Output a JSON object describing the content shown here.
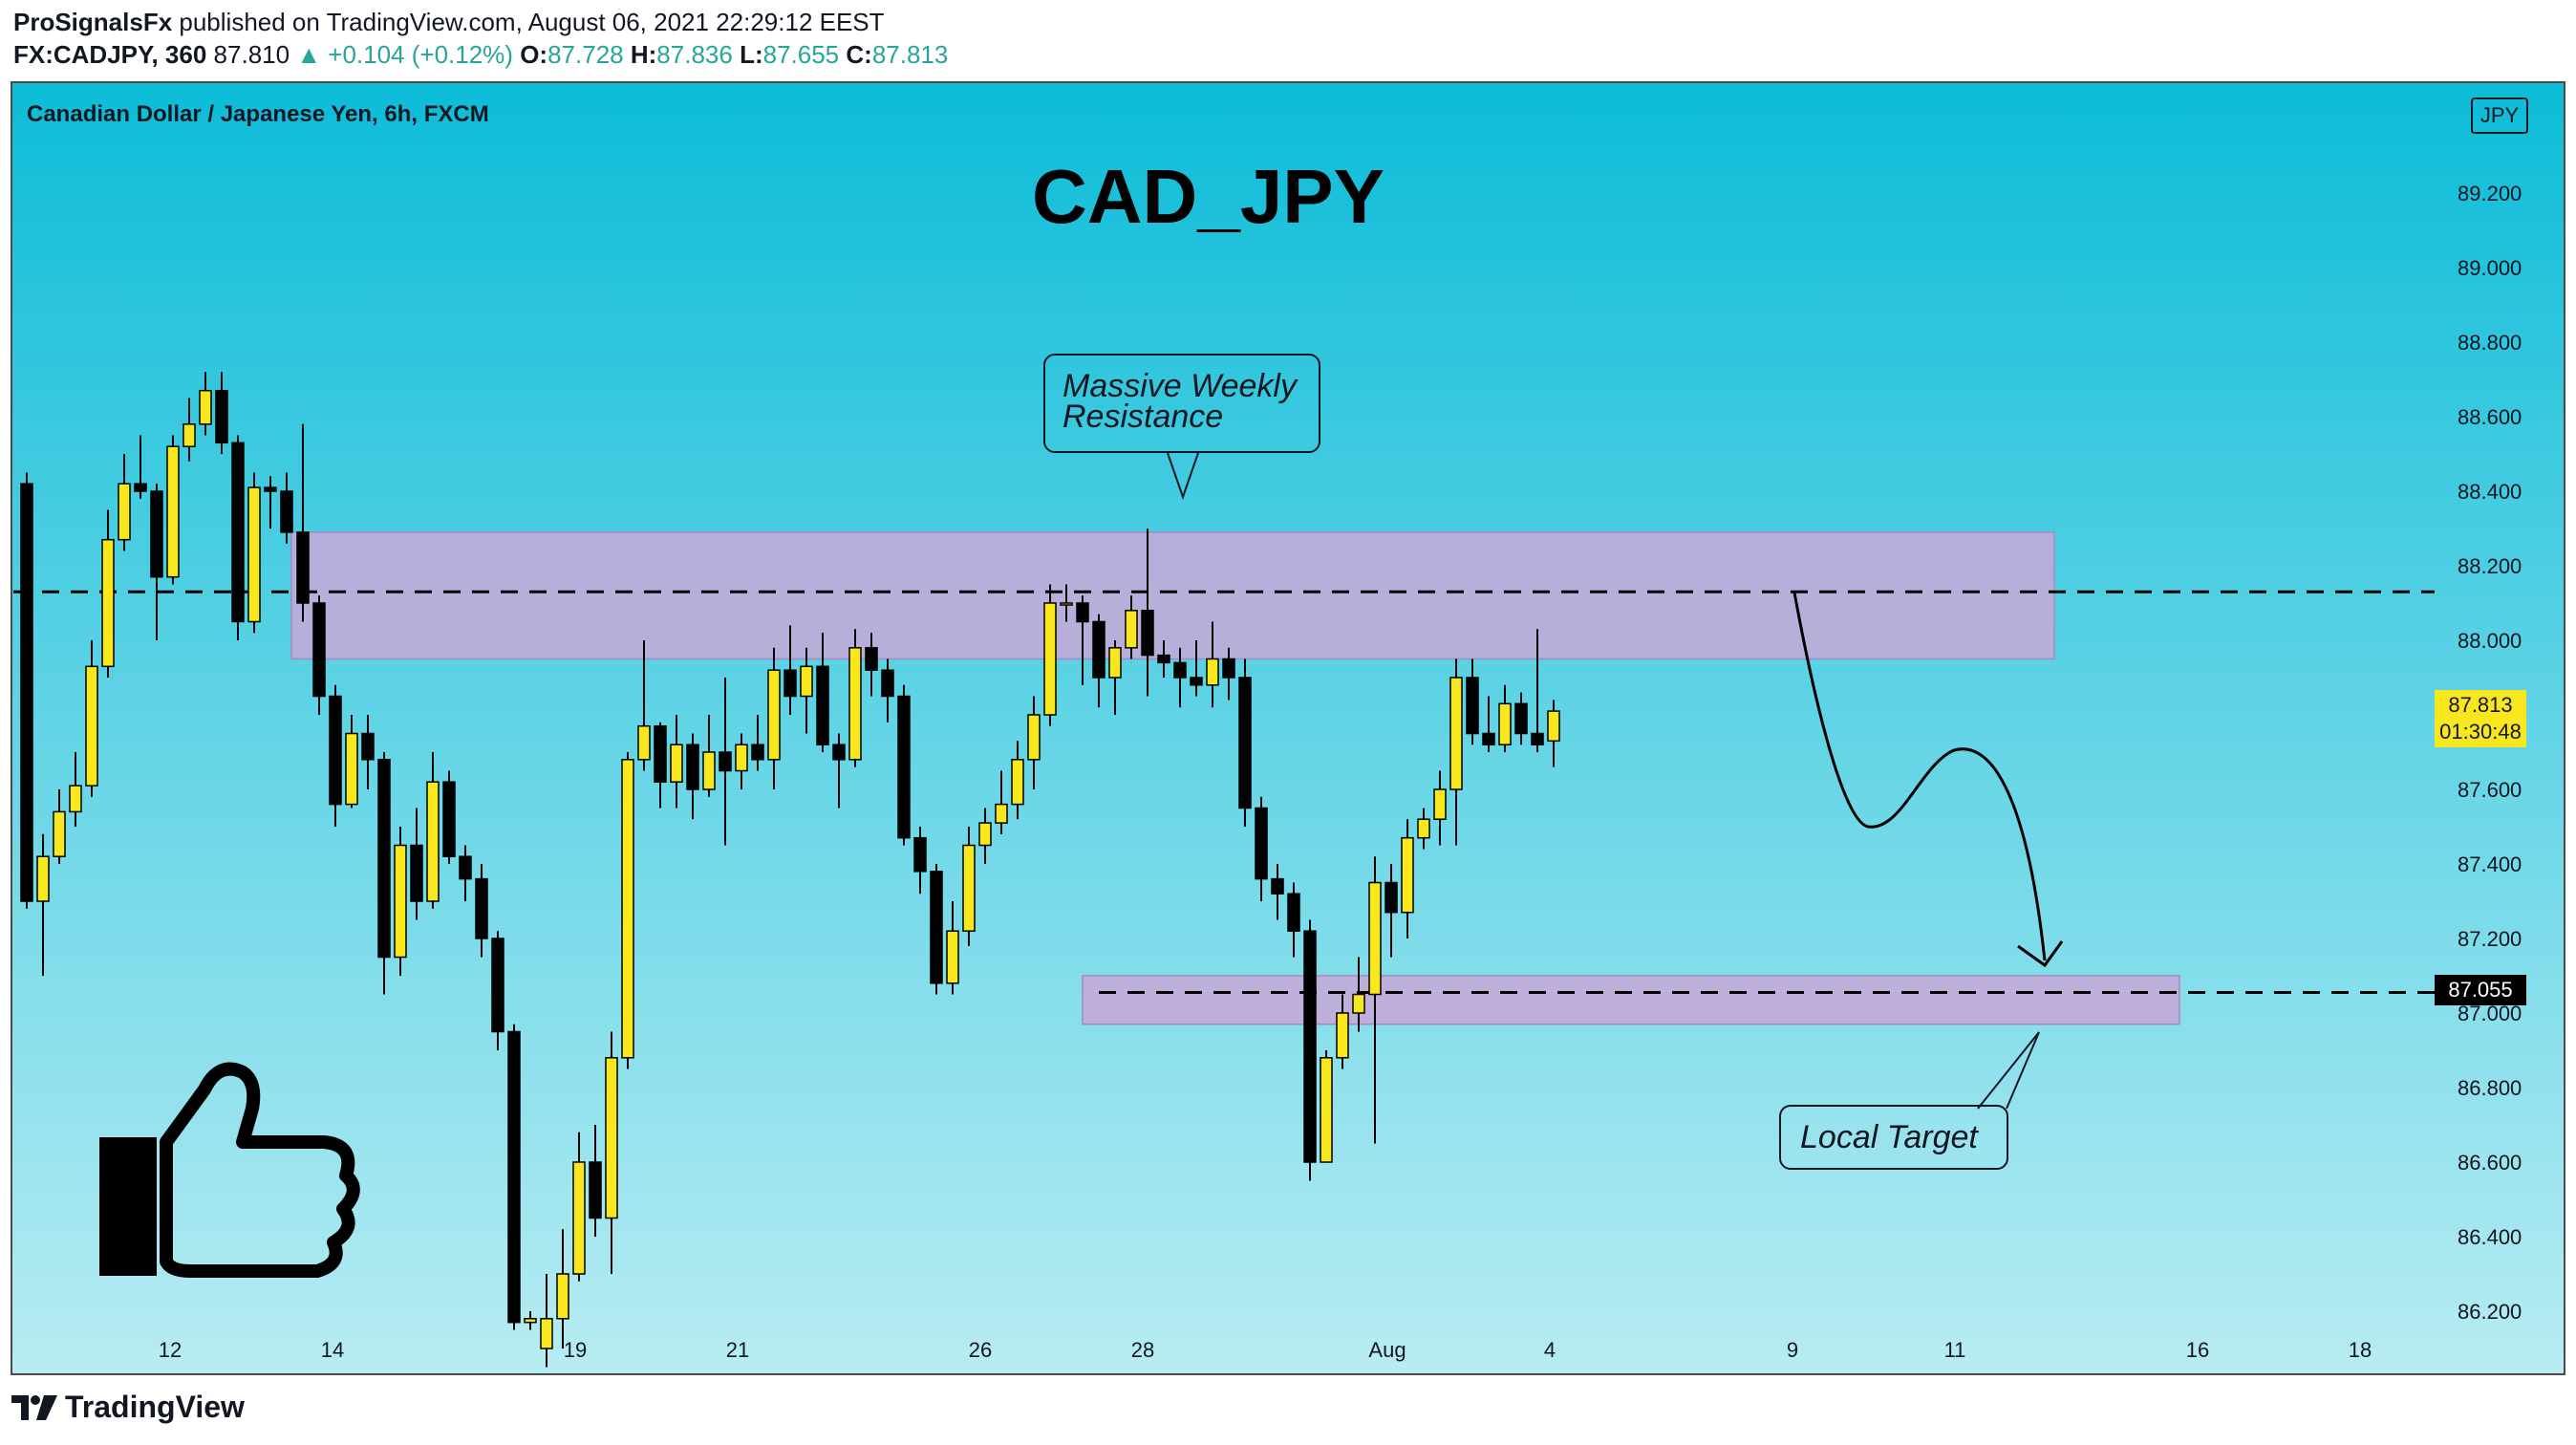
{
  "header": {
    "author": "ProSignalsFx",
    "published_text": "published on TradingView.com, August 06, 2021 22:29:12 EEST",
    "symbol": "FX:CADJPY, 360",
    "last": "87.810",
    "change": "▲ +0.104 (+0.12%)",
    "o_label": "O:",
    "o_val": "87.728",
    "h_label": "H:",
    "h_val": "87.836",
    "l_label": "L:",
    "l_val": "87.655",
    "c_label": "C:",
    "c_val": "87.813"
  },
  "chart": {
    "symbol_title": "Canadian Dollar / Japanese Yen, 6h, FXCM",
    "big_title": "CAD_JPY",
    "currency": "JPY",
    "annotation_resistance": [
      "Massive Weekly",
      "Resistance"
    ],
    "annotation_target": "Local Target",
    "last_price_tag": "87.813",
    "countdown_tag": "01:30:48",
    "target_price_tag": "87.055"
  },
  "footer": {
    "brand": "TradingView"
  },
  "colors": {
    "bg_top": "#0cbcd8",
    "bg_bottom": "#b8ecf3",
    "bull": "#f8e71c",
    "bear": "#000000",
    "zone": "#c9a8d8",
    "price_tag_bg": "#f8e71c",
    "target_tag_bg": "#000000"
  },
  "chart_data": {
    "type": "candlestick",
    "y_ticks": [
      "89.200",
      "89.000",
      "88.800",
      "88.600",
      "88.400",
      "88.200",
      "88.000",
      "87.800",
      "87.600",
      "87.400",
      "87.200",
      "87.000",
      "86.800",
      "86.600",
      "86.400",
      "86.200"
    ],
    "x_ticks": [
      "12",
      "14",
      "19",
      "21",
      "26",
      "28",
      "Aug",
      "4",
      "9",
      "11",
      "16",
      "18"
    ],
    "resistance_zone": [
      87.95,
      88.29
    ],
    "resistance_line": 88.13,
    "target_zone": [
      86.97,
      87.1
    ],
    "target_line": 87.055,
    "candles": [
      [
        88.42,
        87.3,
        88.45,
        87.28
      ],
      [
        87.3,
        87.42,
        87.48,
        87.1
      ],
      [
        87.42,
        87.54,
        87.6,
        87.4
      ],
      [
        87.54,
        87.61,
        87.7,
        87.5
      ],
      [
        87.61,
        87.93,
        88.0,
        87.58
      ],
      [
        87.93,
        88.27,
        88.35,
        87.9
      ],
      [
        88.27,
        88.42,
        88.5,
        88.24
      ],
      [
        88.42,
        88.4,
        88.55,
        88.38
      ],
      [
        88.4,
        88.17,
        88.42,
        88.0
      ],
      [
        88.17,
        88.52,
        88.55,
        88.15
      ],
      [
        88.52,
        88.58,
        88.65,
        88.48
      ],
      [
        88.58,
        88.67,
        88.72,
        88.55
      ],
      [
        88.67,
        88.53,
        88.72,
        88.5
      ],
      [
        88.53,
        88.05,
        88.55,
        88.0
      ],
      [
        88.05,
        88.41,
        88.45,
        88.02
      ],
      [
        88.41,
        88.4,
        88.44,
        88.3
      ],
      [
        88.4,
        88.29,
        88.45,
        88.26
      ],
      [
        88.29,
        88.1,
        88.58,
        88.05
      ],
      [
        88.1,
        87.85,
        88.12,
        87.8
      ],
      [
        87.85,
        87.56,
        87.88,
        87.5
      ],
      [
        87.56,
        87.75,
        87.8,
        87.55
      ],
      [
        87.75,
        87.68,
        87.8,
        87.6
      ],
      [
        87.68,
        87.15,
        87.7,
        87.05
      ],
      [
        87.15,
        87.45,
        87.5,
        87.1
      ],
      [
        87.45,
        87.3,
        87.55,
        87.25
      ],
      [
        87.3,
        87.62,
        87.7,
        87.28
      ],
      [
        87.62,
        87.42,
        87.65,
        87.4
      ],
      [
        87.42,
        87.36,
        87.45,
        87.3
      ],
      [
        87.36,
        87.2,
        87.4,
        87.15
      ],
      [
        87.2,
        86.95,
        87.22,
        86.9
      ],
      [
        86.95,
        86.17,
        86.97,
        86.15
      ],
      [
        86.17,
        86.18,
        86.2,
        86.15
      ],
      [
        86.1,
        86.18,
        86.3,
        86.05
      ],
      [
        86.18,
        86.3,
        86.42,
        86.1
      ],
      [
        86.3,
        86.6,
        86.68,
        86.28
      ],
      [
        86.6,
        86.45,
        86.7,
        86.4
      ],
      [
        86.45,
        86.88,
        86.95,
        86.3
      ],
      [
        86.88,
        87.68,
        87.7,
        86.85
      ],
      [
        87.68,
        87.77,
        88.0,
        87.65
      ],
      [
        87.77,
        87.62,
        87.78,
        87.55
      ],
      [
        87.62,
        87.72,
        87.8,
        87.55
      ],
      [
        87.72,
        87.6,
        87.75,
        87.52
      ],
      [
        87.6,
        87.7,
        87.8,
        87.58
      ],
      [
        87.7,
        87.65,
        87.9,
        87.45
      ],
      [
        87.65,
        87.72,
        87.75,
        87.6
      ],
      [
        87.72,
        87.68,
        87.8,
        87.65
      ],
      [
        87.68,
        87.92,
        87.98,
        87.6
      ],
      [
        87.92,
        87.85,
        88.04,
        87.8
      ],
      [
        87.85,
        87.93,
        87.98,
        87.75
      ],
      [
        87.93,
        87.72,
        88.02,
        87.7
      ],
      [
        87.72,
        87.68,
        87.75,
        87.55
      ],
      [
        87.68,
        87.98,
        88.03,
        87.66
      ],
      [
        87.98,
        87.92,
        88.02,
        87.85
      ],
      [
        87.92,
        87.85,
        87.95,
        87.78
      ],
      [
        87.85,
        87.47,
        87.88,
        87.45
      ],
      [
        87.47,
        87.38,
        87.5,
        87.32
      ],
      [
        87.38,
        87.08,
        87.4,
        87.05
      ],
      [
        87.08,
        87.22,
        87.3,
        87.05
      ],
      [
        87.22,
        87.45,
        87.5,
        87.18
      ],
      [
        87.45,
        87.51,
        87.55,
        87.4
      ],
      [
        87.51,
        87.56,
        87.65,
        87.48
      ],
      [
        87.56,
        87.68,
        87.73,
        87.52
      ],
      [
        87.68,
        87.8,
        87.85,
        87.6
      ],
      [
        87.8,
        88.1,
        88.15,
        87.77
      ],
      [
        88.1,
        88.1,
        88.15,
        88.05
      ],
      [
        88.1,
        88.05,
        88.12,
        87.88
      ],
      [
        88.05,
        87.9,
        88.07,
        87.82
      ],
      [
        87.9,
        87.98,
        88.0,
        87.8
      ],
      [
        87.98,
        88.08,
        88.12,
        87.95
      ],
      [
        88.08,
        87.96,
        88.3,
        87.85
      ],
      [
        87.96,
        87.94,
        88.0,
        87.9
      ],
      [
        87.94,
        87.9,
        87.98,
        87.82
      ],
      [
        87.9,
        87.88,
        88.0,
        87.85
      ],
      [
        87.88,
        87.95,
        88.05,
        87.82
      ],
      [
        87.95,
        87.9,
        87.98,
        87.84
      ],
      [
        87.9,
        87.55,
        87.95,
        87.5
      ],
      [
        87.55,
        87.36,
        87.58,
        87.3
      ],
      [
        87.36,
        87.32,
        87.4,
        87.25
      ],
      [
        87.32,
        87.22,
        87.35,
        87.15
      ],
      [
        87.22,
        86.6,
        87.25,
        86.55
      ],
      [
        86.6,
        86.88,
        86.9,
        86.6
      ],
      [
        86.88,
        87.0,
        87.05,
        86.85
      ],
      [
        87.0,
        87.05,
        87.15,
        86.95
      ],
      [
        87.05,
        87.35,
        87.42,
        86.65
      ],
      [
        87.35,
        87.27,
        87.4,
        87.15
      ],
      [
        87.27,
        87.47,
        87.52,
        87.2
      ],
      [
        87.47,
        87.52,
        87.55,
        87.44
      ],
      [
        87.52,
        87.6,
        87.65,
        87.45
      ],
      [
        87.6,
        87.9,
        87.95,
        87.45
      ],
      [
        87.9,
        87.75,
        87.95,
        87.72
      ],
      [
        87.75,
        87.72,
        87.85,
        87.7
      ],
      [
        87.72,
        87.83,
        87.88,
        87.7
      ],
      [
        87.83,
        87.75,
        87.86,
        87.72
      ],
      [
        87.75,
        87.72,
        88.03,
        87.7
      ],
      [
        87.73,
        87.81,
        87.84,
        87.66
      ]
    ]
  }
}
